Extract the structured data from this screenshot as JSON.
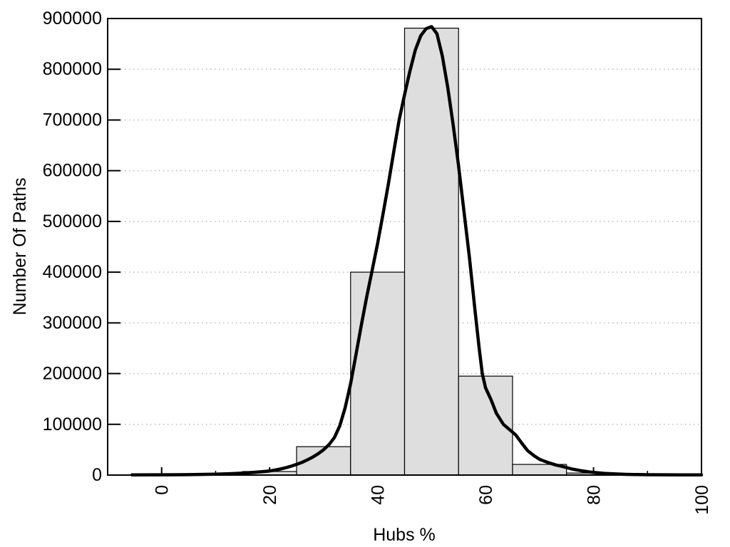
{
  "chart_data": {
    "type": "bar",
    "subtype": "histogram-with-fit-curve",
    "title": "",
    "xlabel": "Hubs %",
    "ylabel": "Number Of Paths",
    "xlim": [
      -10,
      100
    ],
    "ylim": [
      0,
      900000
    ],
    "grid": "horizontal-dotted-major",
    "legend": "none",
    "x_major_ticks": [
      0,
      20,
      40,
      60,
      80,
      100
    ],
    "x_major_tick_labels": [
      "0",
      "20",
      "40",
      "60",
      "80",
      "100"
    ],
    "x_minor_ticks": [
      10,
      30,
      50,
      70,
      90
    ],
    "y_ticks": [
      0,
      100000,
      200000,
      300000,
      400000,
      500000,
      600000,
      700000,
      800000,
      900000
    ],
    "y_tick_labels": [
      "0",
      "100000",
      "200000",
      "300000",
      "400000",
      "500000",
      "600000",
      "700000",
      "800000",
      "900000"
    ],
    "bars": {
      "bin_width": 10,
      "bin_edges": [
        -5,
        5,
        15,
        25,
        35,
        45,
        55,
        65,
        75,
        85,
        95
      ],
      "bin_centers": [
        0,
        10,
        20,
        30,
        40,
        50,
        60,
        70,
        80,
        90
      ],
      "values": [
        700,
        1500,
        7000,
        56000,
        400000,
        881000,
        195000,
        21000,
        4000,
        300
      ]
    },
    "fit_curve": {
      "peak_x": 50,
      "peak_y": 884000,
      "points": [
        [
          -5.5,
          300
        ],
        [
          0,
          500
        ],
        [
          5,
          900
        ],
        [
          10,
          1800
        ],
        [
          13,
          2800
        ],
        [
          15,
          3800
        ],
        [
          17,
          5200
        ],
        [
          19,
          7000
        ],
        [
          20,
          8200
        ],
        [
          21,
          9800
        ],
        [
          22,
          12000
        ],
        [
          23,
          14500
        ],
        [
          24,
          17500
        ],
        [
          25,
          21000
        ],
        [
          26,
          25000
        ],
        [
          27,
          30000
        ],
        [
          28,
          35500
        ],
        [
          29,
          42000
        ],
        [
          30,
          50000
        ],
        [
          31,
          60000
        ],
        [
          32,
          74000
        ],
        [
          33,
          97000
        ],
        [
          34,
          133000
        ],
        [
          35,
          180000
        ],
        [
          36,
          237000
        ],
        [
          37,
          296000
        ],
        [
          38,
          352000
        ],
        [
          39,
          404000
        ],
        [
          40,
          456000
        ],
        [
          41,
          514000
        ],
        [
          42,
          574000
        ],
        [
          43,
          638000
        ],
        [
          44,
          700000
        ],
        [
          45,
          750000
        ],
        [
          46,
          797000
        ],
        [
          47,
          838000
        ],
        [
          48,
          866000
        ],
        [
          49,
          880000
        ],
        [
          50,
          884000
        ],
        [
          51,
          870000
        ],
        [
          52,
          826000
        ],
        [
          53,
          764000
        ],
        [
          54,
          690000
        ],
        [
          55,
          610000
        ],
        [
          56,
          520000
        ],
        [
          57,
          430000
        ],
        [
          58,
          330000
        ],
        [
          58.8,
          252000
        ],
        [
          59.4,
          200000
        ],
        [
          60,
          172000
        ],
        [
          61,
          149000
        ],
        [
          62,
          122000
        ],
        [
          63.3,
          100000
        ],
        [
          64.5,
          89000
        ],
        [
          65.6,
          79000
        ],
        [
          66.7,
          63000
        ],
        [
          67.8,
          48000
        ],
        [
          69,
          38000
        ],
        [
          70,
          31000
        ],
        [
          71.5,
          25000
        ],
        [
          73,
          20000
        ],
        [
          74.4,
          16500
        ],
        [
          76,
          12000
        ],
        [
          77.5,
          9000
        ],
        [
          79,
          6500
        ],
        [
          80,
          5200
        ],
        [
          82,
          3400
        ],
        [
          84,
          2200
        ],
        [
          86,
          1400
        ],
        [
          88,
          1000
        ],
        [
          90,
          700
        ],
        [
          93,
          500
        ],
        [
          96,
          400
        ],
        [
          100,
          300
        ]
      ]
    },
    "colors": {
      "background": "#ffffff",
      "bar_fill": "#dedede",
      "bar_border": "#000000",
      "curve": "#000000",
      "axis": "#000000",
      "grid": "#b8b8b8",
      "text": "#000000"
    }
  }
}
